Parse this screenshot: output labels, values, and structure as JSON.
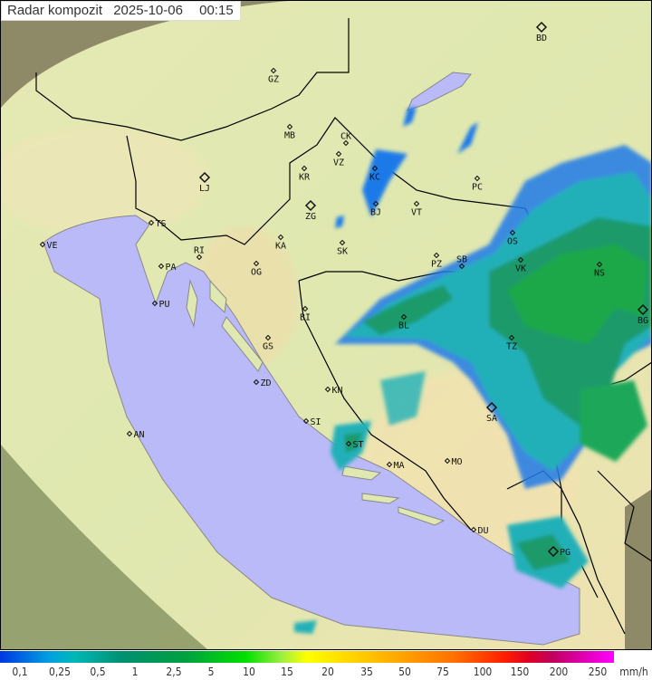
{
  "header": {
    "title": "Radar kompozit",
    "date": "2025-10-06",
    "time": "00:15"
  },
  "legend": {
    "unit": "mm/h",
    "values": [
      "0,1",
      "0,25",
      "0,5",
      "1",
      "2,5",
      "5",
      "10",
      "15",
      "20",
      "35",
      "50",
      "75",
      "100",
      "150",
      "200",
      "250"
    ],
    "colors": [
      "#0038e0",
      "#00b8b8",
      "#009070",
      "#00a040",
      "#00e000",
      "#ffff00",
      "#ffa000",
      "#ff2000",
      "#c00060",
      "#ff00ff"
    ]
  },
  "map": {
    "colors": {
      "sea": "#babaf8",
      "land": "#dfe8b0",
      "outside_coverage": "#8a8a6a",
      "border": "#000000"
    },
    "cities": [
      {
        "code": "GZ",
        "major": false
      },
      {
        "code": "BD",
        "major": true
      },
      {
        "code": "MB",
        "major": false
      },
      {
        "code": "CK",
        "major": false
      },
      {
        "code": "VZ",
        "major": false
      },
      {
        "code": "KR",
        "major": false
      },
      {
        "code": "KC",
        "major": false
      },
      {
        "code": "PC",
        "major": false
      },
      {
        "code": "LJ",
        "major": true
      },
      {
        "code": "ZG",
        "major": true
      },
      {
        "code": "BJ",
        "major": false
      },
      {
        "code": "VT",
        "major": false
      },
      {
        "code": "TS",
        "major": false
      },
      {
        "code": "KA",
        "major": false
      },
      {
        "code": "SK",
        "major": false
      },
      {
        "code": "OS",
        "major": false
      },
      {
        "code": "VE",
        "major": false
      },
      {
        "code": "RI",
        "major": false
      },
      {
        "code": "PA",
        "major": false
      },
      {
        "code": "OG",
        "major": false
      },
      {
        "code": "PZ",
        "major": false
      },
      {
        "code": "SB",
        "major": false
      },
      {
        "code": "VK",
        "major": false
      },
      {
        "code": "NS",
        "major": false
      },
      {
        "code": "PU",
        "major": false
      },
      {
        "code": "BI",
        "major": false
      },
      {
        "code": "BL",
        "major": false
      },
      {
        "code": "BG",
        "major": true
      },
      {
        "code": "GS",
        "major": false
      },
      {
        "code": "TZ",
        "major": false
      },
      {
        "code": "ZD",
        "major": false
      },
      {
        "code": "KN",
        "major": false
      },
      {
        "code": "SA",
        "major": true
      },
      {
        "code": "SI",
        "major": false
      },
      {
        "code": "AN",
        "major": false
      },
      {
        "code": "ST",
        "major": false
      },
      {
        "code": "MA",
        "major": false
      },
      {
        "code": "MO",
        "major": false
      },
      {
        "code": "DU",
        "major": false
      },
      {
        "code": "PG",
        "major": true
      }
    ]
  }
}
